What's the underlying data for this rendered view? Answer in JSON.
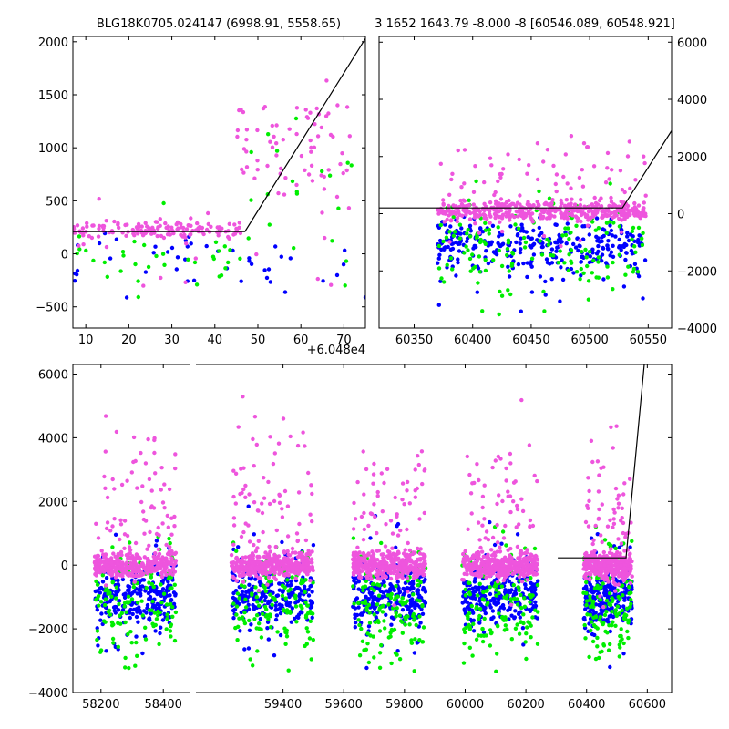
{
  "chart_data": [
    {
      "id": "top-left",
      "type": "scatter",
      "title": "BLG18K0705.024147 (6998.91, 5558.65)",
      "xlim": [
        7,
        75
      ],
      "ylim": [
        -700,
        2050
      ],
      "xticks": [
        10,
        20,
        30,
        40,
        50,
        60,
        70
      ],
      "yticks": [
        -500,
        0,
        500,
        1000,
        1500,
        2000
      ],
      "x_offset_label": "+6.048e4",
      "y_axis_side": "left",
      "model_line": {
        "x": [
          7,
          47,
          75
        ],
        "y": [
          210,
          210,
          2030
        ]
      },
      "series": [
        {
          "color": "#0000ff",
          "n": 45,
          "distribution": [
            {
              "x": [
                7,
                75
              ],
              "y": [
                -650,
                400
              ],
              "w": 1.0
            }
          ]
        },
        {
          "color": "#00ee00",
          "n": 55,
          "distribution": [
            {
              "x": [
                7,
                48
              ],
              "y": [
                -650,
                600
              ],
              "w": 0.6
            },
            {
              "x": [
                48,
                72
              ],
              "y": [
                -600,
                1700
              ],
              "w": 0.4
            }
          ]
        },
        {
          "color": "#ee55dd",
          "n": 230,
          "distribution": [
            {
              "x": [
                7,
                46
              ],
              "y": [
                100,
                350
              ],
              "w": 0.62
            },
            {
              "x": [
                45,
                72
              ],
              "y": [
                250,
                1900
              ],
              "w": 0.3
            },
            {
              "x": [
                7,
                72
              ],
              "y": [
                -600,
                1100
              ],
              "w": 0.08
            }
          ]
        }
      ]
    },
    {
      "id": "top-right",
      "type": "scatter",
      "title": "3 1652 1643.79 -8.000 -8 [60546.089, 60548.921]",
      "xlim": [
        60320,
        60570
      ],
      "ylim": [
        -4000,
        6200
      ],
      "xticks": [
        60350,
        60400,
        60450,
        60500,
        60550
      ],
      "yticks": [
        -4000,
        -2000,
        0,
        2000,
        4000,
        6000
      ],
      "y_axis_side": "right",
      "model_line": {
        "x": [
          60320,
          60528,
          60570
        ],
        "y": [
          200,
          200,
          2900
        ]
      },
      "series": [
        {
          "color": "#0000ff",
          "n": 320,
          "distribution": [
            {
              "x": [
                60370,
                60548
              ],
              "y": [
                -2300,
                200
              ],
              "w": 0.8
            },
            {
              "x": [
                60370,
                60548
              ],
              "y": [
                -3900,
                600
              ],
              "w": 0.2
            }
          ]
        },
        {
          "color": "#00ee00",
          "n": 160,
          "distribution": [
            {
              "x": [
                60370,
                60548
              ],
              "y": [
                -3900,
                1500
              ],
              "w": 1.0
            }
          ]
        },
        {
          "color": "#ee55dd",
          "n": 520,
          "distribution": [
            {
              "x": [
                60370,
                60548
              ],
              "y": [
                -400,
                600
              ],
              "w": 0.82
            },
            {
              "x": [
                60370,
                60548
              ],
              "y": [
                -1500,
                3500
              ],
              "w": 0.18
            }
          ]
        }
      ]
    },
    {
      "id": "bottom",
      "type": "scatter",
      "xlim": [
        58110,
        60680
      ],
      "ylim": [
        -4000,
        6300
      ],
      "xticks": [
        58200,
        58400,
        59400,
        59600,
        59800,
        60000,
        60200,
        60400,
        60600
      ],
      "yticks": [
        -4000,
        -2000,
        0,
        2000,
        4000,
        6000
      ],
      "axis_break_x": 58490,
      "segments": [
        {
          "xlim": [
            58110,
            58490
          ],
          "px": [
            80,
            210
          ]
        },
        {
          "xlim": [
            59110,
            60680
          ],
          "px": [
            214,
            737
          ]
        }
      ],
      "y_axis_side": "left",
      "model_line": {
        "x": [
          60305,
          60530,
          60590
        ],
        "y": [
          230,
          230,
          6300
        ]
      },
      "seasons": [
        [
          58180,
          58440
        ],
        [
          59230,
          59500
        ],
        [
          59630,
          59870
        ],
        [
          59990,
          60240
        ],
        [
          60390,
          60550
        ]
      ],
      "series": [
        {
          "color": "#0000ff",
          "n_per_season": 260,
          "distribution": [
            {
              "y": [
                -2200,
                300
              ],
              "w": 0.82
            },
            {
              "y": [
                -3900,
                2200
              ],
              "w": 0.18
            }
          ]
        },
        {
          "color": "#00ee00",
          "n_per_season": 140,
          "distribution": [
            {
              "y": [
                -3900,
                1500
              ],
              "w": 1.0
            }
          ]
        },
        {
          "color": "#ee55dd",
          "n_per_season": 420,
          "distribution": [
            {
              "y": [
                -600,
                600
              ],
              "w": 0.82
            },
            {
              "y": [
                -2000,
                5400
              ],
              "w": 0.18
            }
          ]
        }
      ]
    }
  ]
}
